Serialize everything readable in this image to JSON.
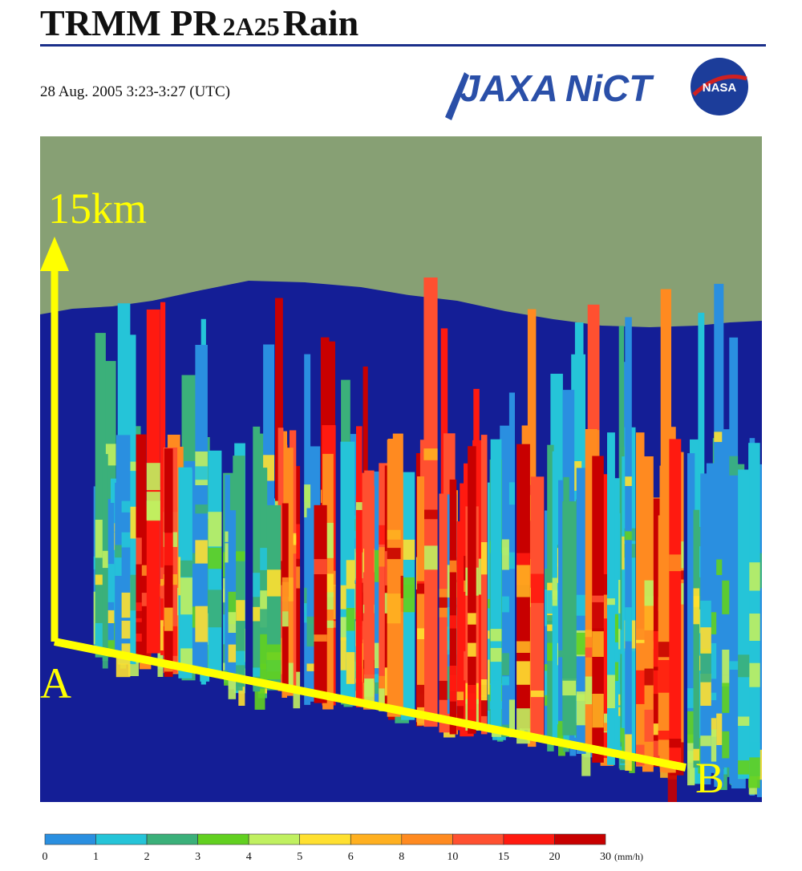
{
  "header": {
    "title_main": "TRMM PR",
    "title_product": "2A25",
    "title_rain": "Rain",
    "datetime": "28 Aug. 2005 3:23-3:27 (UTC)"
  },
  "logos": {
    "jaxa": "JAXA",
    "nict": "NiCT",
    "nasa": "NASA"
  },
  "visualization": {
    "height_label": "15km",
    "point_a": "A",
    "point_b": "B",
    "sky_color": "#87a074",
    "ground_color": "#141e96",
    "axis_color": "#ffff00"
  },
  "legend": {
    "ticks": [
      "0",
      "1",
      "2",
      "3",
      "4",
      "5",
      "6",
      "8",
      "10",
      "15",
      "20",
      "30"
    ],
    "unit": "(mm/h)",
    "colors": [
      "#1a4f9c",
      "#2a8fe0",
      "#25c4d8",
      "#3bb07a",
      "#62d020",
      "#c0f060",
      "#ffe030",
      "#ffb020",
      "#ff8a20",
      "#ff5030",
      "#ff1a10",
      "#c80000"
    ]
  }
}
